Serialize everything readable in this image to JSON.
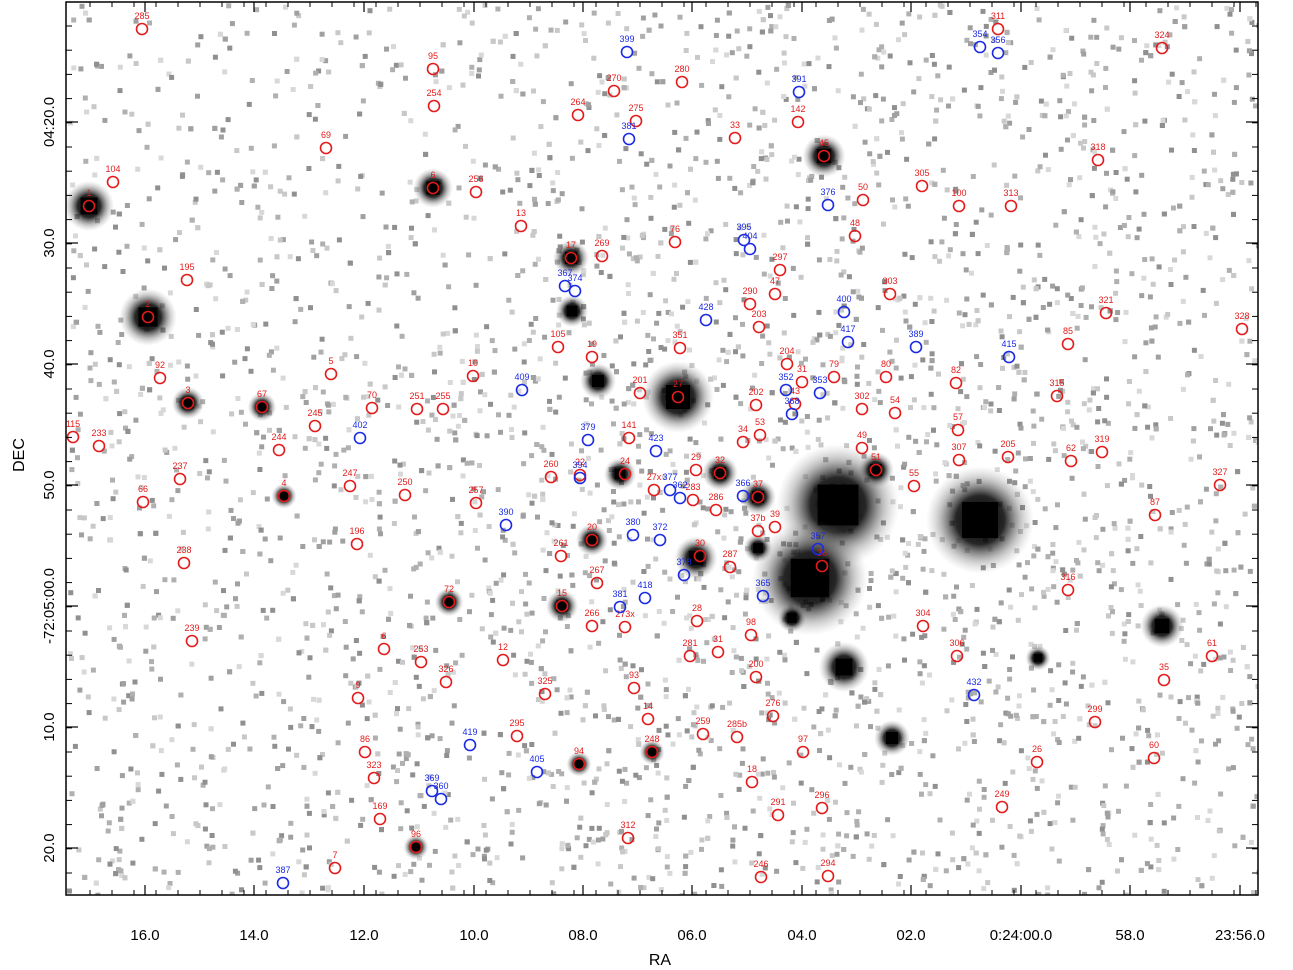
{
  "axes": {
    "xlabel": "RA",
    "ylabel": "DEC",
    "x_ticks": [
      "16.0",
      "14.0",
      "12.0",
      "10.0",
      "08.0",
      "06.0",
      "04.0",
      "02.0",
      "0:24:00.0",
      "58.0",
      "23:56.0"
    ],
    "y_ticks": [
      "04:20.0",
      "30.0",
      "40.0",
      "50.0",
      "-72:05:00.0",
      "10.0",
      "20.0"
    ]
  },
  "colors": {
    "red_marker": "#e31b1b",
    "blue_marker": "#1b2be3",
    "frame": "#000000",
    "background_noise": "#9a9a9a"
  },
  "sources_red": [
    "285",
    "311",
    "324",
    "95",
    "280",
    "270",
    "254",
    "264",
    "275",
    "142",
    "33",
    "69",
    "318",
    "104",
    "6",
    "256",
    "45",
    "305",
    "100",
    "313",
    "50",
    "1",
    "13",
    "48",
    "76",
    "17",
    "269",
    "297",
    "195",
    "290",
    "303",
    "321",
    "2",
    "47",
    "203",
    "328",
    "85",
    "105",
    "19",
    "351",
    "204",
    "79",
    "80",
    "92",
    "5",
    "10",
    "31",
    "82",
    "201",
    "27",
    "202",
    "43",
    "302",
    "54",
    "3",
    "67",
    "70",
    "251",
    "255",
    "315",
    "115",
    "245",
    "53",
    "34",
    "57",
    "233",
    "244",
    "141",
    "49",
    "307",
    "205",
    "62",
    "319",
    "237",
    "22",
    "24",
    "29",
    "32",
    "51",
    "55",
    "247",
    "260",
    "250",
    "27x",
    "37",
    "327",
    "66",
    "4",
    "257",
    "283",
    "286",
    "87",
    "196",
    "37b",
    "39",
    "20",
    "30",
    "261",
    "287",
    "36",
    "238",
    "267",
    "273x",
    "316",
    "72",
    "15",
    "266",
    "28",
    "304",
    "239",
    "6",
    "253",
    "12",
    "281",
    "31",
    "98",
    "306",
    "61",
    "326",
    "9",
    "93",
    "200",
    "35",
    "325",
    "14",
    "276",
    "295",
    "259",
    "285b",
    "97",
    "299",
    "86",
    "248",
    "26",
    "60",
    "323",
    "94",
    "18",
    "291",
    "296",
    "169",
    "249",
    "312",
    "96",
    "7",
    "246",
    "294",
    "78"
  ],
  "sources_blue": [
    "399",
    "354",
    "356",
    "391",
    "381",
    "376",
    "395",
    "404",
    "367",
    "374",
    "428",
    "400",
    "417",
    "389",
    "415",
    "409",
    "352",
    "353",
    "368",
    "379",
    "402",
    "423",
    "394",
    "377",
    "362",
    "366",
    "372",
    "380",
    "357",
    "378",
    "390",
    "381",
    "418",
    "365",
    "432",
    "419",
    "405",
    "369",
    "360",
    "387"
  ]
}
